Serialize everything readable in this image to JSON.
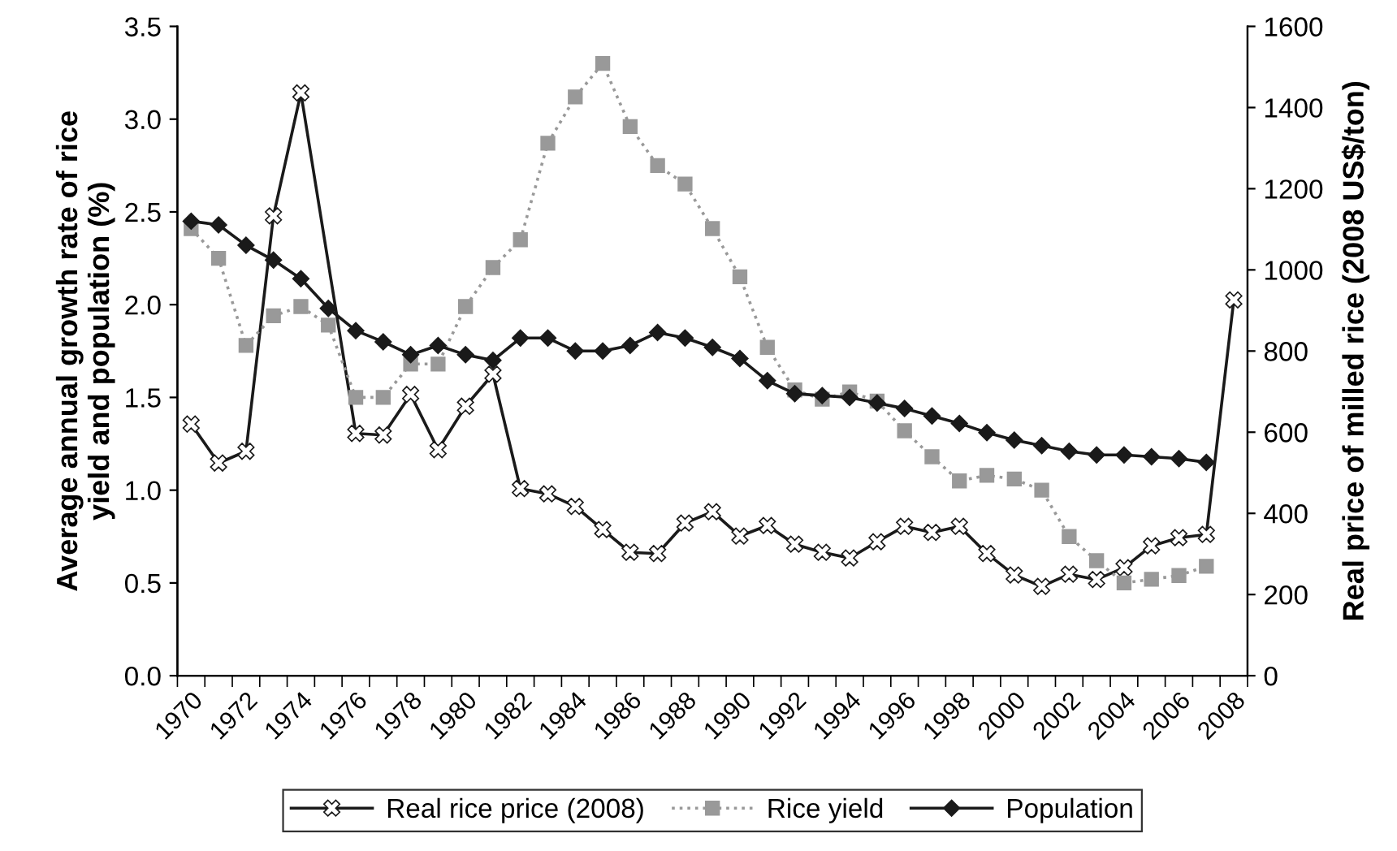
{
  "chart_data": {
    "type": "line",
    "categories": [
      "1970",
      null,
      "1972",
      null,
      "1974",
      null,
      "1976",
      null,
      "1978",
      null,
      "1980",
      null,
      "1982",
      null,
      "1984",
      null,
      "1986",
      null,
      "1988",
      null,
      "1990",
      null,
      "1992",
      null,
      "1994",
      null,
      "1996",
      null,
      "1998",
      null,
      "2000",
      null,
      "2002",
      null,
      "2004",
      null,
      "2006",
      null,
      "2008"
    ],
    "series": [
      {
        "name": "Real rice price (2008)",
        "color": "#1a1a1a",
        "axis": "y2",
        "marker": "cross",
        "line_style": "solid",
        "values": [
          620,
          524,
          553,
          1133,
          1436,
          null,
          597,
          593,
          693,
          557,
          664,
          743,
          461,
          448,
          417,
          360,
          304,
          301,
          376,
          404,
          344,
          370,
          324,
          304,
          290,
          330,
          368,
          353,
          368,
          301,
          248,
          220,
          250,
          237,
          266,
          320,
          340,
          348,
          926
        ]
      },
      {
        "name": "Rice yield",
        "color": "#999999",
        "marker": "square",
        "line_style": "dotted",
        "values": [
          2.41,
          2.25,
          1.78,
          1.94,
          1.99,
          1.89,
          1.5,
          1.5,
          1.68,
          1.68,
          1.99,
          2.2,
          2.35,
          2.87,
          3.12,
          3.3,
          2.96,
          2.75,
          2.65,
          2.41,
          2.15,
          1.77,
          1.54,
          1.49,
          1.53,
          1.48,
          1.32,
          1.18,
          1.05,
          1.08,
          1.06,
          1.0,
          0.75,
          0.62,
          0.5,
          0.52,
          0.54,
          0.59,
          null
        ]
      },
      {
        "name": "Population",
        "color": "#1a1a1a",
        "marker": "diamond",
        "line_style": "solid",
        "values": [
          2.45,
          2.43,
          2.32,
          2.24,
          2.14,
          1.98,
          1.86,
          1.8,
          1.73,
          1.78,
          1.73,
          1.7,
          1.82,
          1.82,
          1.75,
          1.75,
          1.78,
          1.85,
          1.82,
          1.77,
          1.71,
          1.59,
          1.52,
          1.51,
          1.5,
          1.47,
          1.44,
          1.4,
          1.36,
          1.31,
          1.27,
          1.24,
          1.21,
          1.19,
          1.19,
          1.18,
          1.17,
          1.15,
          null
        ]
      }
    ],
    "ylabel": "Average annual growth rate of rice\nyield and population (%)",
    "y2label": "Real price of milled rice (2008 US$/ton)",
    "ylim": [
      0,
      3.5
    ],
    "yticks": [
      {
        "value": 0,
        "label": "0.0"
      },
      {
        "value": 0.5,
        "label": "0.5"
      },
      {
        "value": 1,
        "label": "1.0"
      },
      {
        "value": 1.5,
        "label": "1.5"
      },
      {
        "value": 2,
        "label": "2.0"
      },
      {
        "value": 2.5,
        "label": "2.5"
      },
      {
        "value": 3,
        "label": "3.0"
      },
      {
        "value": 3.5,
        "label": "3.5"
      }
    ],
    "y2lim": [
      0,
      1600
    ],
    "y2ticks": [
      0,
      200,
      400,
      600,
      800,
      1000,
      1200,
      1400,
      1600
    ],
    "legend": "bottom",
    "grid": false
  }
}
